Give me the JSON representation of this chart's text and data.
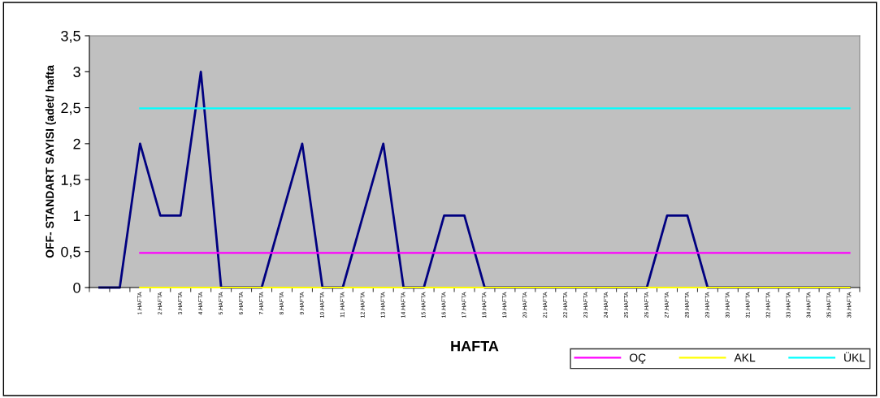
{
  "chart_data": {
    "type": "line",
    "xlabel": "HAFTA",
    "ylabel": "OFF- STANDART SAYISI (adet/ hafta",
    "categories": [
      null,
      null,
      "1.HAFTA",
      "2.HAFTA",
      "3.HAFTA",
      "4.HAFTA",
      "5.HAFTA",
      "6.HAFTA",
      "7.HAFTA",
      "8.HAFTA",
      "9.HAFTA",
      "10.HAFTA",
      "11.HAFTA",
      "12.HAFTA",
      "13.HAFTA",
      "14.HAFTA",
      "15.HAFTA",
      "16.HAFTA",
      "17.HAFTA",
      "18.HAFTA",
      "19.HAFTA",
      "20.HAFTA",
      "21.HAFTA",
      "22.HAFTA",
      "23.HAFTA",
      "24.HAFTA",
      "25.HAFTA",
      "26.HAFTA",
      "27.HAFTA",
      "28.HAFTA",
      "29.HAFTA",
      "30.HAFTA",
      "31.HAFTA",
      "32.HAFTA",
      "33.HAFTA",
      "34.HAFTA",
      "35.HAFTA",
      "36.HAFTA"
    ],
    "series": [
      {
        "color": "#000080",
        "values": [
          0,
          0,
          2,
          1,
          1,
          3,
          0,
          0,
          0,
          1,
          2,
          0,
          0,
          1,
          2,
          0,
          0,
          1,
          1,
          0,
          0,
          0,
          0,
          0,
          0,
          0,
          0,
          0,
          1,
          1,
          0,
          0,
          0,
          0,
          0,
          0,
          0,
          0
        ]
      },
      {
        "name": "OÇ",
        "color": "#ff00ff",
        "values": [
          null,
          null,
          0.48,
          0.48,
          0.48,
          0.48,
          0.48,
          0.48,
          0.48,
          0.48,
          0.48,
          0.48,
          0.48,
          0.48,
          0.48,
          0.48,
          0.48,
          0.48,
          0.48,
          0.48,
          0.48,
          0.48,
          0.48,
          0.48,
          0.48,
          0.48,
          0.48,
          0.48,
          0.48,
          0.48,
          0.48,
          0.48,
          0.48,
          0.48,
          0.48,
          0.48,
          0.48,
          0.48
        ]
      },
      {
        "name": "AKL",
        "color": "#ffff00",
        "values": [
          null,
          null,
          0,
          0,
          0,
          0,
          0,
          0,
          0,
          0,
          0,
          0,
          0,
          0,
          0,
          0,
          0,
          0,
          0,
          0,
          0,
          0,
          0,
          0,
          0,
          0,
          0,
          0,
          0,
          0,
          0,
          0,
          0,
          0,
          0,
          0,
          0,
          0
        ]
      },
      {
        "name": "ÜKL",
        "color": "#00ffff",
        "values": [
          null,
          null,
          2.49,
          2.49,
          2.49,
          2.49,
          2.49,
          2.49,
          2.49,
          2.49,
          2.49,
          2.49,
          2.49,
          2.49,
          2.49,
          2.49,
          2.49,
          2.49,
          2.49,
          2.49,
          2.49,
          2.49,
          2.49,
          2.49,
          2.49,
          2.49,
          2.49,
          2.49,
          2.49,
          2.49,
          2.49,
          2.49,
          2.49,
          2.49,
          2.49,
          2.49,
          2.49,
          2.49
        ]
      }
    ],
    "ylim": [
      0,
      3.5
    ],
    "yticks": [
      0,
      {
        "value": 0.5,
        "label": "0,5"
      },
      1,
      {
        "value": 1.5,
        "label": "1,5"
      },
      2,
      {
        "value": 2.5,
        "label": "2,5"
      },
      3,
      {
        "value": 3.5,
        "label": "3,5"
      }
    ],
    "grid": false,
    "legend": "bottom right",
    "marker": "none",
    "line_style": "solid"
  }
}
